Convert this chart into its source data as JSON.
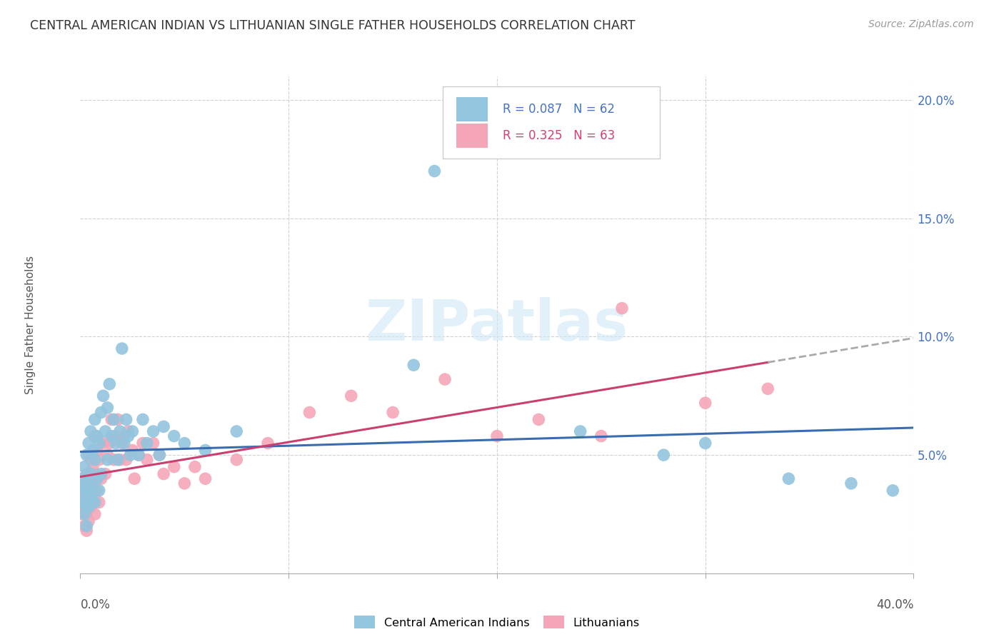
{
  "title": "CENTRAL AMERICAN INDIAN VS LITHUANIAN SINGLE FATHER HOUSEHOLDS CORRELATION CHART",
  "source": "Source: ZipAtlas.com",
  "ylabel": "Single Father Households",
  "legend1_R": "R = 0.087",
  "legend1_N": "N = 62",
  "legend2_R": "R = 0.325",
  "legend2_N": "N = 63",
  "blue_color": "#92c5de",
  "pink_color": "#f4a6b8",
  "line_blue": "#3a6cb0",
  "line_pink": "#c94070",
  "line_gray_dash": "#aaaaaa",
  "watermark_color": "#d0e8f5",
  "title_color": "#333333",
  "source_color": "#999999",
  "axis_label_color": "#555555",
  "right_tick_color": "#4472c4",
  "grid_color": "#d0d0d0",
  "xlim": [
    0.0,
    0.4
  ],
  "ylim": [
    0.0,
    0.21
  ],
  "blue_x": [
    0.001,
    0.001,
    0.001,
    0.002,
    0.002,
    0.002,
    0.002,
    0.003,
    0.003,
    0.003,
    0.003,
    0.004,
    0.004,
    0.004,
    0.005,
    0.005,
    0.005,
    0.006,
    0.006,
    0.007,
    0.007,
    0.007,
    0.008,
    0.008,
    0.009,
    0.009,
    0.01,
    0.01,
    0.011,
    0.012,
    0.013,
    0.013,
    0.014,
    0.015,
    0.016,
    0.017,
    0.018,
    0.019,
    0.02,
    0.021,
    0.022,
    0.023,
    0.024,
    0.025,
    0.028,
    0.03,
    0.032,
    0.035,
    0.038,
    0.04,
    0.045,
    0.05,
    0.06,
    0.075,
    0.16,
    0.24,
    0.28,
    0.3,
    0.34,
    0.37,
    0.39,
    0.17
  ],
  "blue_y": [
    0.03,
    0.035,
    0.04,
    0.025,
    0.03,
    0.038,
    0.045,
    0.02,
    0.028,
    0.035,
    0.05,
    0.028,
    0.038,
    0.055,
    0.032,
    0.042,
    0.06,
    0.035,
    0.052,
    0.03,
    0.048,
    0.065,
    0.04,
    0.058,
    0.035,
    0.055,
    0.042,
    0.068,
    0.075,
    0.06,
    0.048,
    0.07,
    0.08,
    0.058,
    0.065,
    0.055,
    0.048,
    0.06,
    0.095,
    0.055,
    0.065,
    0.058,
    0.05,
    0.06,
    0.05,
    0.065,
    0.055,
    0.06,
    0.05,
    0.062,
    0.058,
    0.055,
    0.052,
    0.06,
    0.088,
    0.06,
    0.05,
    0.055,
    0.04,
    0.038,
    0.035,
    0.17
  ],
  "pink_x": [
    0.001,
    0.001,
    0.001,
    0.002,
    0.002,
    0.002,
    0.003,
    0.003,
    0.003,
    0.003,
    0.004,
    0.004,
    0.004,
    0.005,
    0.005,
    0.005,
    0.006,
    0.006,
    0.007,
    0.007,
    0.007,
    0.008,
    0.008,
    0.009,
    0.009,
    0.01,
    0.011,
    0.012,
    0.013,
    0.014,
    0.015,
    0.016,
    0.017,
    0.018,
    0.019,
    0.02,
    0.021,
    0.022,
    0.023,
    0.025,
    0.026,
    0.028,
    0.03,
    0.032,
    0.035,
    0.038,
    0.04,
    0.045,
    0.05,
    0.055,
    0.06,
    0.075,
    0.09,
    0.11,
    0.13,
    0.15,
    0.175,
    0.2,
    0.22,
    0.25,
    0.26,
    0.3,
    0.33
  ],
  "pink_y": [
    0.025,
    0.03,
    0.035,
    0.02,
    0.028,
    0.038,
    0.018,
    0.025,
    0.032,
    0.042,
    0.022,
    0.035,
    0.05,
    0.028,
    0.038,
    0.048,
    0.03,
    0.045,
    0.025,
    0.042,
    0.058,
    0.035,
    0.052,
    0.03,
    0.048,
    0.04,
    0.055,
    0.042,
    0.05,
    0.055,
    0.065,
    0.048,
    0.058,
    0.065,
    0.048,
    0.055,
    0.058,
    0.048,
    0.06,
    0.052,
    0.04,
    0.05,
    0.055,
    0.048,
    0.055,
    0.05,
    0.042,
    0.045,
    0.038,
    0.045,
    0.04,
    0.048,
    0.055,
    0.068,
    0.075,
    0.068,
    0.082,
    0.058,
    0.065,
    0.058,
    0.112,
    0.072,
    0.078
  ]
}
